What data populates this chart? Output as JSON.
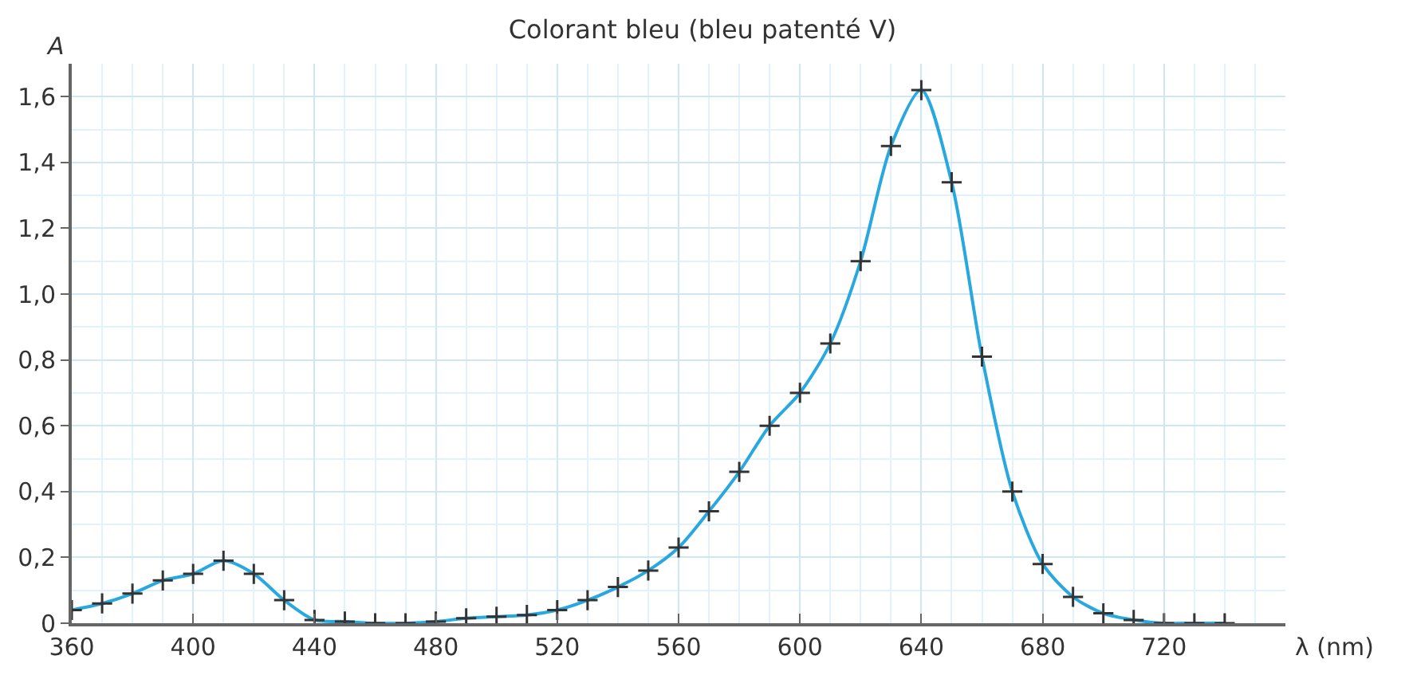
{
  "chart_data": {
    "type": "line",
    "title": "Colorant bleu (bleu patenté V)",
    "xlabel": "λ (nm)",
    "ylabel": "A",
    "x": [
      360,
      370,
      380,
      390,
      400,
      410,
      420,
      430,
      440,
      450,
      460,
      470,
      480,
      490,
      500,
      510,
      520,
      530,
      540,
      550,
      560,
      570,
      580,
      590,
      600,
      610,
      620,
      630,
      640,
      650,
      660,
      670,
      680,
      690,
      700,
      710,
      720,
      730,
      740
    ],
    "series": [
      {
        "color": "#29a8e0",
        "values": [
          0.04,
          0.06,
          0.09,
          0.13,
          0.15,
          0.19,
          0.15,
          0.07,
          0.01,
          0.005,
          0,
          0,
          0.005,
          0.015,
          0.02,
          0.025,
          0.04,
          0.07,
          0.11,
          0.16,
          0.23,
          0.34,
          0.46,
          0.6,
          0.7,
          0.85,
          1.1,
          1.45,
          1.62,
          1.34,
          0.81,
          0.4,
          0.18,
          0.08,
          0.03,
          0.01,
          0,
          0,
          0
        ]
      }
    ],
    "xlim": [
      360,
      760
    ],
    "xticks": [
      360,
      400,
      440,
      480,
      520,
      560,
      600,
      640,
      680,
      720
    ],
    "ylim": [
      0,
      1.7
    ],
    "yticks": [
      {
        "value": 0,
        "label": "0"
      },
      {
        "value": 0.2,
        "label": "0,2"
      },
      {
        "value": 0.4,
        "label": "0,4"
      },
      {
        "value": 0.6,
        "label": "0,6"
      },
      {
        "value": 0.8,
        "label": "0,8"
      },
      {
        "value": 1.0,
        "label": "1,0"
      },
      {
        "value": 1.2,
        "label": "1,2"
      },
      {
        "value": 1.4,
        "label": "1,4"
      },
      {
        "value": 1.6,
        "label": "1,6"
      }
    ],
    "grid": true,
    "marker": "cross",
    "line_style": "solid"
  }
}
